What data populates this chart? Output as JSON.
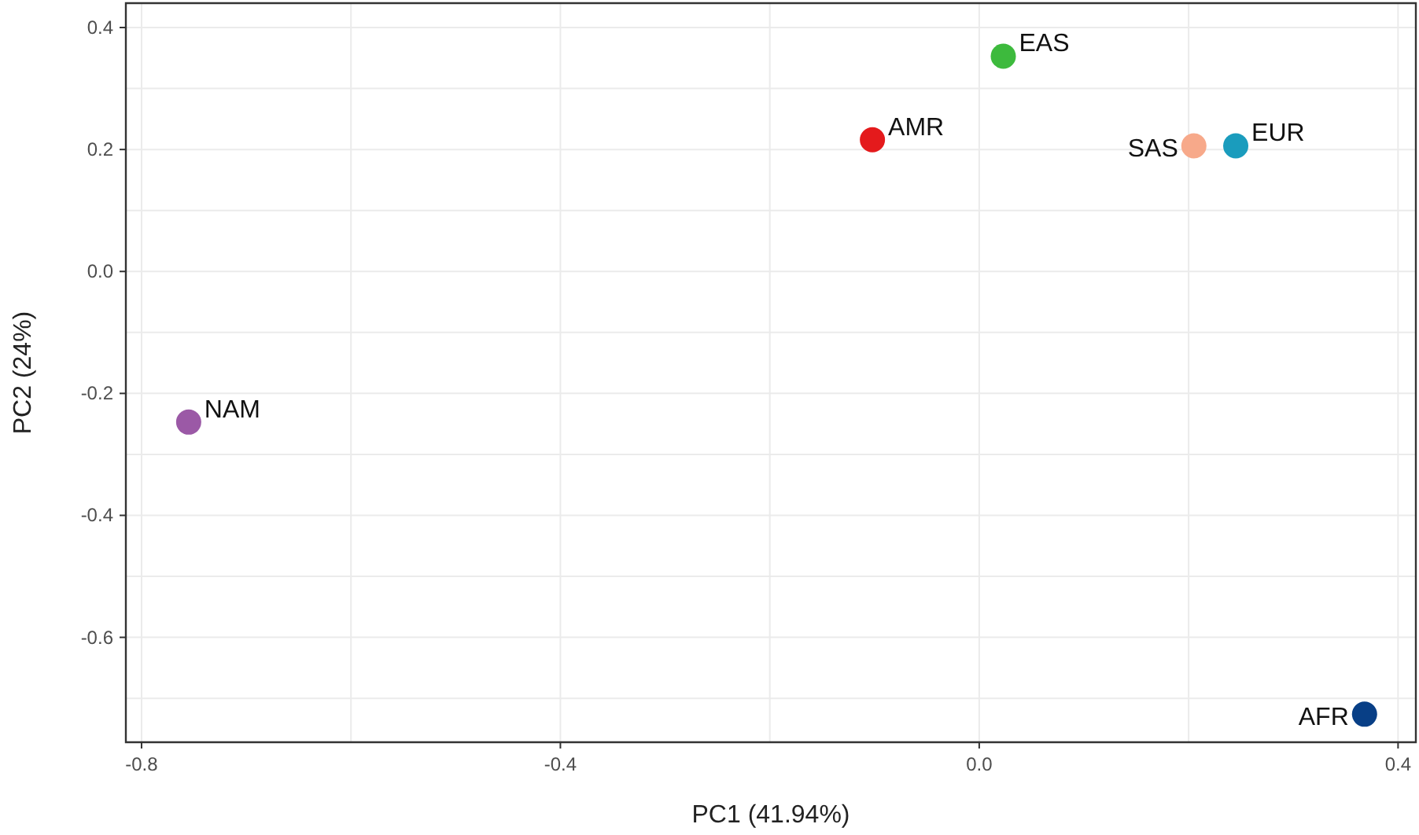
{
  "chart_data": {
    "type": "scatter",
    "xlabel": "PC1 (41.94%)",
    "ylabel": "PC2 (24%)",
    "xlim": [
      -0.815,
      0.417
    ],
    "ylim": [
      -0.772,
      0.44
    ],
    "xticks": [
      -0.8,
      {
        "value": -0.6,
        "label": null
      },
      -0.4,
      {
        "value": -0.2,
        "label": null
      },
      {
        "value": 0,
        "label": "0.0"
      },
      {
        "value": 0.2,
        "label": null
      },
      0.4
    ],
    "yticks": [
      {
        "value": -0.7,
        "label": null
      },
      -0.6,
      {
        "value": -0.5,
        "label": null
      },
      -0.4,
      {
        "value": -0.3,
        "label": null
      },
      -0.2,
      {
        "value": -0.1,
        "label": null
      },
      {
        "value": 0,
        "label": "0.0"
      },
      {
        "value": 0.1,
        "label": null
      },
      0.2,
      {
        "value": 0.3,
        "label": null
      },
      0.4
    ],
    "grid": true,
    "legend": false,
    "marker": "circle",
    "series": [
      {
        "name": "NAM",
        "color": "#9b59a6",
        "x": [
          -0.755
        ],
        "values": [
          -0.247
        ]
      },
      {
        "name": "AMR",
        "color": "#e41a1c",
        "x": [
          -0.102
        ],
        "values": [
          0.216
        ]
      },
      {
        "name": "EAS",
        "color": "#3dba3d",
        "x": [
          0.023
        ],
        "values": [
          0.353
        ]
      },
      {
        "name": "SAS",
        "color": "#f7a98a",
        "x": [
          0.205
        ],
        "values": [
          0.206
        ]
      },
      {
        "name": "EUR",
        "color": "#1a9cbd",
        "x": [
          0.245
        ],
        "values": [
          0.206
        ]
      },
      {
        "name": "AFR",
        "color": "#083f86",
        "x": [
          0.368
        ],
        "values": [
          -0.726
        ]
      }
    ]
  }
}
